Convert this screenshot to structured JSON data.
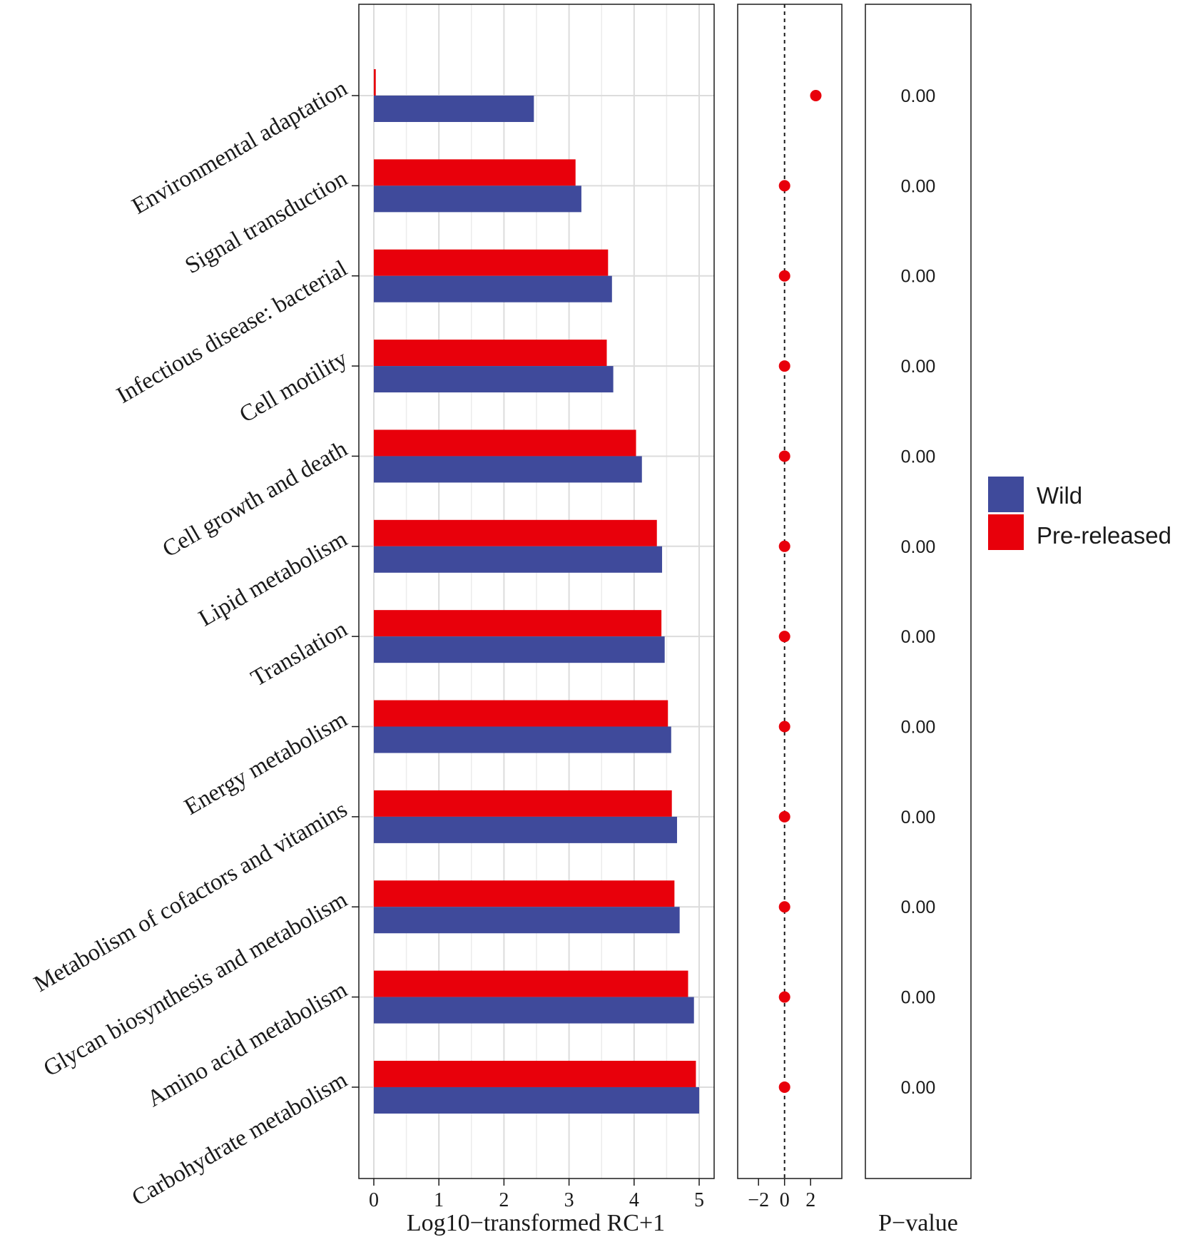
{
  "chart_data": {
    "type": "bar",
    "orientation": "horizontal",
    "categories": [
      "Environmental adaptation",
      "Signal transduction",
      "Infectious disease: bacterial",
      "Cell motility",
      "Cell growth and death",
      "Lipid metabolism",
      "Translation",
      "Energy metabolism",
      "Metabolism of cofactors and vitamins",
      "Glycan biosynthesis and metabolism",
      "Amino acid metabolism",
      "Carbohydrate metabolism"
    ],
    "series": [
      {
        "name": "Pre-released",
        "color": "#e8000b",
        "values": [
          0.03,
          3.1,
          3.6,
          3.58,
          4.03,
          4.35,
          4.42,
          4.52,
          4.58,
          4.62,
          4.83,
          4.95
        ]
      },
      {
        "name": "Wild",
        "color": "#3f4a9b",
        "values": [
          2.46,
          3.19,
          3.66,
          3.68,
          4.12,
          4.43,
          4.47,
          4.57,
          4.66,
          4.7,
          4.92,
          5.0
        ]
      }
    ],
    "xlabel": "Log10−transformed RC+1",
    "xlim": [
      -0.23,
      5.23
    ],
    "xticks": [
      0,
      1,
      2,
      3,
      4,
      5
    ],
    "grid": true,
    "legend": {
      "placement": "right",
      "entries": [
        {
          "label": "Wild",
          "color": "#3f4a9b"
        },
        {
          "label": "Pre-released",
          "color": "#e8000b"
        }
      ]
    },
    "difference_panel": {
      "type": "scatter",
      "values": [
        2.4,
        0,
        0,
        0,
        0,
        0,
        0,
        0,
        0,
        0,
        0,
        0
      ],
      "error": [
        0.4,
        0,
        0,
        0,
        0,
        0,
        0,
        0,
        0,
        0,
        0,
        0
      ],
      "xlim": [
        -3.6,
        4.4
      ],
      "xticks": [
        "−2",
        "0",
        "2"
      ],
      "xtick_values": [
        -2,
        0,
        2
      ],
      "reference_line": 0,
      "color": "#e8000b"
    },
    "pvalue_panel": {
      "xlabel": "P−value",
      "values": [
        "0.00",
        "0.00",
        "0.00",
        "0.00",
        "0.00",
        "0.00",
        "0.00",
        "0.00",
        "0.00",
        "0.00",
        "0.00",
        "0.00"
      ]
    }
  }
}
